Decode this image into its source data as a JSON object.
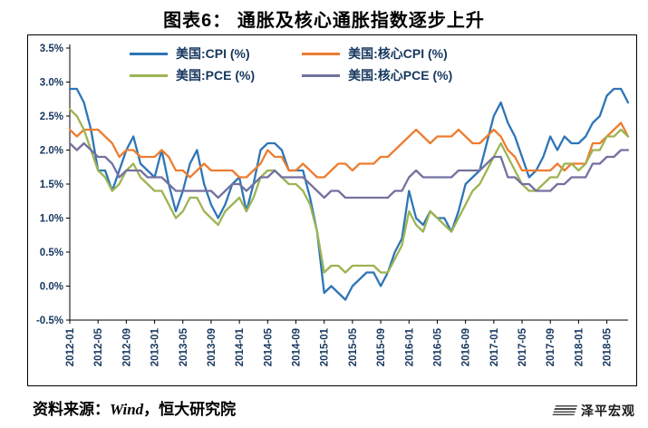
{
  "page": {
    "title": "图表6： 通胀及核心通胀指数逐步上升"
  },
  "source_note": {
    "prefix": "资料来源：",
    "wind": "Wind",
    "suffix": "，恒大研究院"
  },
  "watermark": {
    "label": "泽平宏观",
    "icon": "striped-flag-icon"
  },
  "chart_data": {
    "type": "line",
    "title": "图表6： 通胀及核心通胀指数逐步上升",
    "xlabel": "",
    "ylabel": "",
    "ylim": [
      -0.5,
      3.5
    ],
    "y_ticks": [
      "3.5%",
      "3.0%",
      "2.5%",
      "2.0%",
      "1.5%",
      "1.0%",
      "0.5%",
      "0.0%",
      "-0.5%"
    ],
    "x_start": "2012-01",
    "x_end": "2018-08",
    "x_freq": "monthly",
    "x_tick_every": 4,
    "x_tick_labels": [
      "2012-01",
      "2012-05",
      "2012-09",
      "2013-01",
      "2013-05",
      "2013-09",
      "2014-01",
      "2014-05",
      "2014-09",
      "2015-01",
      "2015-05",
      "2015-09",
      "2016-01",
      "2016-05",
      "2016-09",
      "2017-01",
      "2017-05",
      "2017-09",
      "2018-01",
      "2018-05"
    ],
    "grid": false,
    "legend_position": "top",
    "axis_label_color": "#17375E",
    "axis_line_color": "#000000",
    "series": [
      {
        "name": "美国:CPI (%)",
        "color": "#2E75B6",
        "values": [
          2.9,
          2.9,
          2.7,
          2.3,
          1.7,
          1.7,
          1.4,
          1.7,
          2.0,
          2.2,
          1.8,
          1.7,
          1.6,
          2.0,
          1.5,
          1.1,
          1.4,
          1.8,
          2.0,
          1.5,
          1.2,
          1.0,
          1.2,
          1.5,
          1.6,
          1.1,
          1.5,
          2.0,
          2.1,
          2.1,
          2.0,
          1.7,
          1.7,
          1.7,
          1.3,
          0.8,
          -0.1,
          0.0,
          -0.1,
          -0.2,
          0.0,
          0.1,
          0.2,
          0.2,
          0.0,
          0.2,
          0.5,
          0.7,
          1.4,
          1.0,
          0.9,
          1.1,
          1.0,
          1.0,
          0.8,
          1.1,
          1.5,
          1.6,
          1.7,
          2.1,
          2.5,
          2.7,
          2.4,
          2.2,
          1.9,
          1.6,
          1.7,
          1.9,
          2.2,
          2.0,
          2.2,
          2.1,
          2.1,
          2.2,
          2.4,
          2.5,
          2.8,
          2.9,
          2.9,
          2.7
        ]
      },
      {
        "name": "美国:核心CPI (%)",
        "color": "#ED7D31",
        "values": [
          2.3,
          2.2,
          2.3,
          2.3,
          2.3,
          2.2,
          2.1,
          1.9,
          2.0,
          2.0,
          1.9,
          1.9,
          1.9,
          2.0,
          1.9,
          1.7,
          1.7,
          1.6,
          1.7,
          1.8,
          1.7,
          1.7,
          1.7,
          1.7,
          1.6,
          1.6,
          1.7,
          1.8,
          2.0,
          1.9,
          1.9,
          1.7,
          1.7,
          1.8,
          1.7,
          1.6,
          1.6,
          1.7,
          1.8,
          1.8,
          1.7,
          1.8,
          1.8,
          1.8,
          1.9,
          1.9,
          2.0,
          2.1,
          2.2,
          2.3,
          2.2,
          2.1,
          2.2,
          2.2,
          2.2,
          2.3,
          2.2,
          2.1,
          2.1,
          2.2,
          2.3,
          2.2,
          2.0,
          1.9,
          1.7,
          1.7,
          1.7,
          1.7,
          1.7,
          1.8,
          1.7,
          1.8,
          1.8,
          1.8,
          2.1,
          2.1,
          2.2,
          2.3,
          2.4,
          2.2
        ]
      },
      {
        "name": "美国:PCE (%)",
        "color": "#9CB452",
        "values": [
          2.6,
          2.5,
          2.3,
          2.0,
          1.7,
          1.6,
          1.4,
          1.5,
          1.7,
          1.8,
          1.6,
          1.5,
          1.4,
          1.4,
          1.2,
          1.0,
          1.1,
          1.3,
          1.3,
          1.1,
          1.0,
          0.9,
          1.1,
          1.2,
          1.3,
          1.1,
          1.3,
          1.6,
          1.7,
          1.7,
          1.6,
          1.5,
          1.5,
          1.4,
          1.2,
          0.8,
          0.2,
          0.3,
          0.3,
          0.2,
          0.3,
          0.3,
          0.3,
          0.3,
          0.2,
          0.2,
          0.4,
          0.6,
          1.1,
          0.9,
          0.8,
          1.1,
          1.0,
          0.9,
          0.8,
          1.0,
          1.2,
          1.4,
          1.5,
          1.7,
          1.9,
          2.1,
          1.9,
          1.7,
          1.5,
          1.4,
          1.4,
          1.5,
          1.6,
          1.6,
          1.8,
          1.8,
          1.7,
          1.8,
          2.0,
          2.0,
          2.2,
          2.2,
          2.3,
          2.2
        ]
      },
      {
        "name": "美国:核心PCE (%)",
        "color": "#73719F",
        "values": [
          2.1,
          2.0,
          2.1,
          2.0,
          1.9,
          1.9,
          1.8,
          1.6,
          1.7,
          1.7,
          1.7,
          1.6,
          1.6,
          1.6,
          1.5,
          1.4,
          1.4,
          1.4,
          1.4,
          1.4,
          1.4,
          1.3,
          1.4,
          1.5,
          1.5,
          1.4,
          1.5,
          1.6,
          1.6,
          1.7,
          1.6,
          1.6,
          1.6,
          1.6,
          1.5,
          1.4,
          1.3,
          1.4,
          1.4,
          1.3,
          1.3,
          1.3,
          1.3,
          1.3,
          1.3,
          1.3,
          1.4,
          1.4,
          1.6,
          1.7,
          1.6,
          1.6,
          1.6,
          1.6,
          1.6,
          1.7,
          1.7,
          1.7,
          1.7,
          1.8,
          1.9,
          1.9,
          1.6,
          1.6,
          1.5,
          1.5,
          1.4,
          1.4,
          1.4,
          1.5,
          1.5,
          1.6,
          1.6,
          1.6,
          1.8,
          1.8,
          1.9,
          1.9,
          2.0,
          2.0
        ]
      }
    ]
  }
}
